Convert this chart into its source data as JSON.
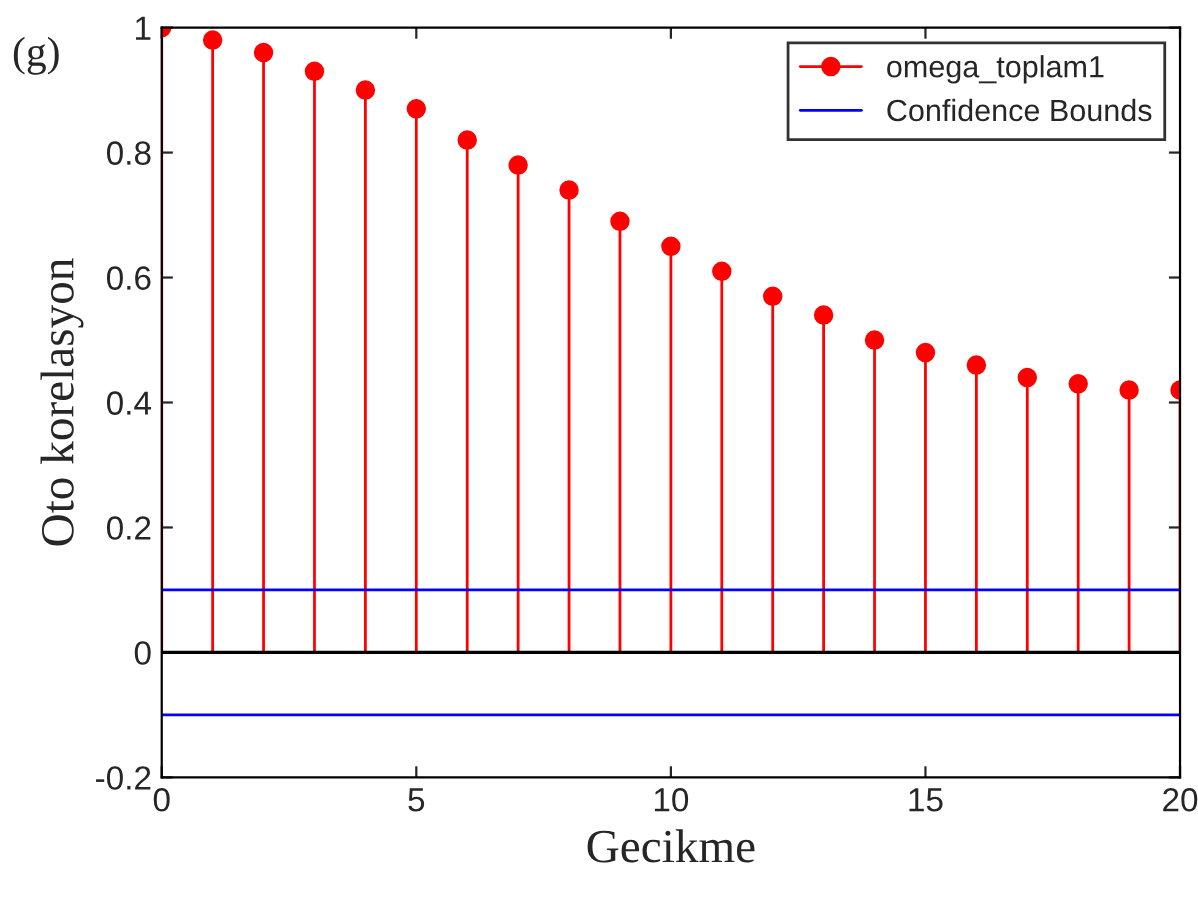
{
  "chart_data": {
    "type": "lollipop",
    "xlabel": "Gecikme",
    "ylabel": "Oto korelasyon",
    "annotations": [
      "(g)"
    ],
    "xlim": [
      0,
      20
    ],
    "ylim": [
      -0.2,
      1
    ],
    "xticks": [
      0,
      5,
      10,
      15,
      20
    ],
    "yticks": [
      -0.2,
      0,
      0.2,
      0.4,
      0.6,
      0.8,
      1
    ],
    "legend": "top right",
    "series": [
      {
        "name": "omega_toplam1",
        "marker": "circle",
        "color": "#ff0000",
        "x": [
          0,
          1,
          2,
          3,
          4,
          5,
          6,
          7,
          8,
          9,
          10,
          11,
          12,
          13,
          14,
          15,
          16,
          17,
          18,
          19,
          20
        ],
        "values": [
          1.0,
          0.98,
          0.96,
          0.93,
          0.9,
          0.87,
          0.82,
          0.78,
          0.74,
          0.69,
          0.65,
          0.61,
          0.57,
          0.54,
          0.5,
          0.48,
          0.46,
          0.44,
          0.43,
          0.42,
          0.42
        ]
      },
      {
        "name": "Confidence Bounds",
        "type": "line",
        "color": "#0000ff",
        "x": [
          0,
          20
        ],
        "values": [
          0.1,
          0.1
        ]
      },
      {
        "type": "line",
        "color": "#0000ff",
        "x": [
          0,
          20
        ],
        "values": [
          -0.1,
          -0.1
        ]
      }
    ]
  }
}
